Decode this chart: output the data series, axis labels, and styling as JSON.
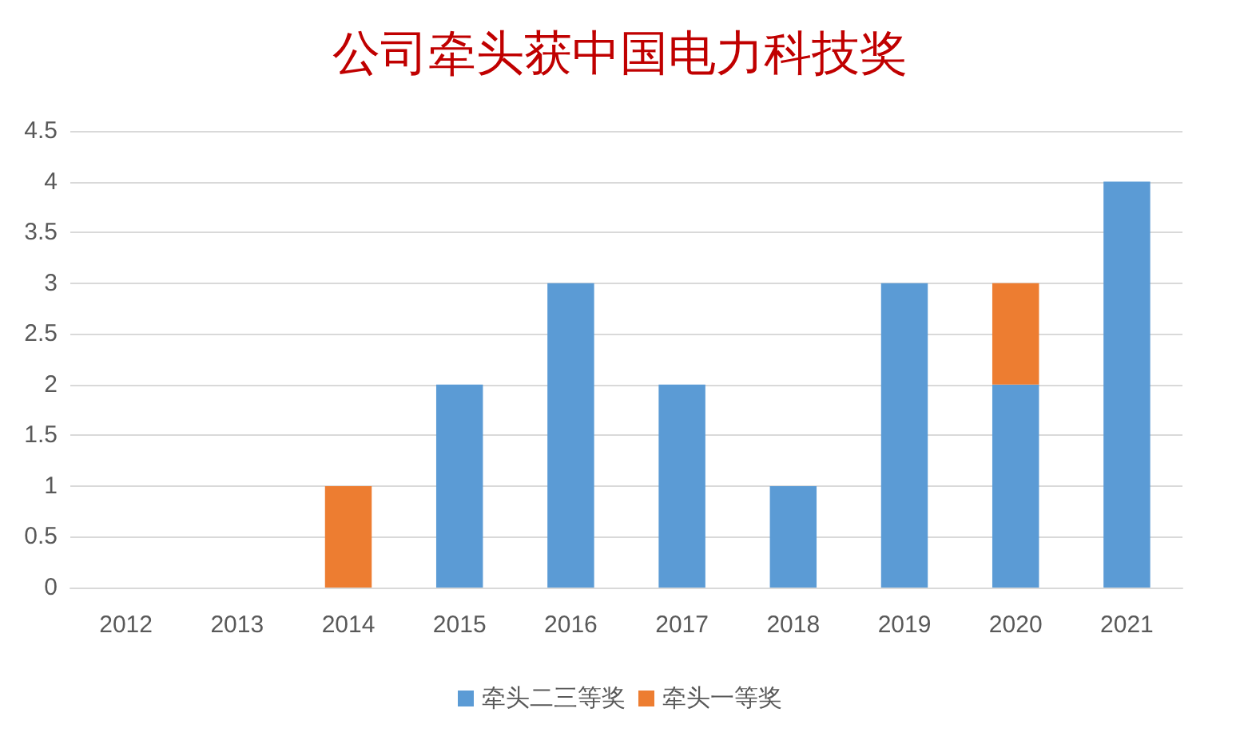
{
  "chart_data": {
    "type": "bar",
    "title": "公司牵头获中国电力科技奖",
    "categories": [
      "2012",
      "2013",
      "2014",
      "2015",
      "2016",
      "2017",
      "2018",
      "2019",
      "2020",
      "2021"
    ],
    "series": [
      {
        "name": "牵头二三等奖",
        "color": "#5b9bd5",
        "values": [
          0,
          0,
          0,
          2,
          3,
          2,
          1,
          3,
          2,
          4
        ]
      },
      {
        "name": "牵头一等奖",
        "color": "#ed7d31",
        "values": [
          0,
          0,
          1,
          0,
          0,
          0,
          0,
          0,
          1,
          0
        ]
      }
    ],
    "stacked": true,
    "ylim": [
      0,
      4.5
    ],
    "yticks": [
      0,
      0.5,
      1,
      1.5,
      2,
      2.5,
      3,
      3.5,
      4,
      4.5
    ],
    "grid": "y",
    "legend": "bottom"
  }
}
